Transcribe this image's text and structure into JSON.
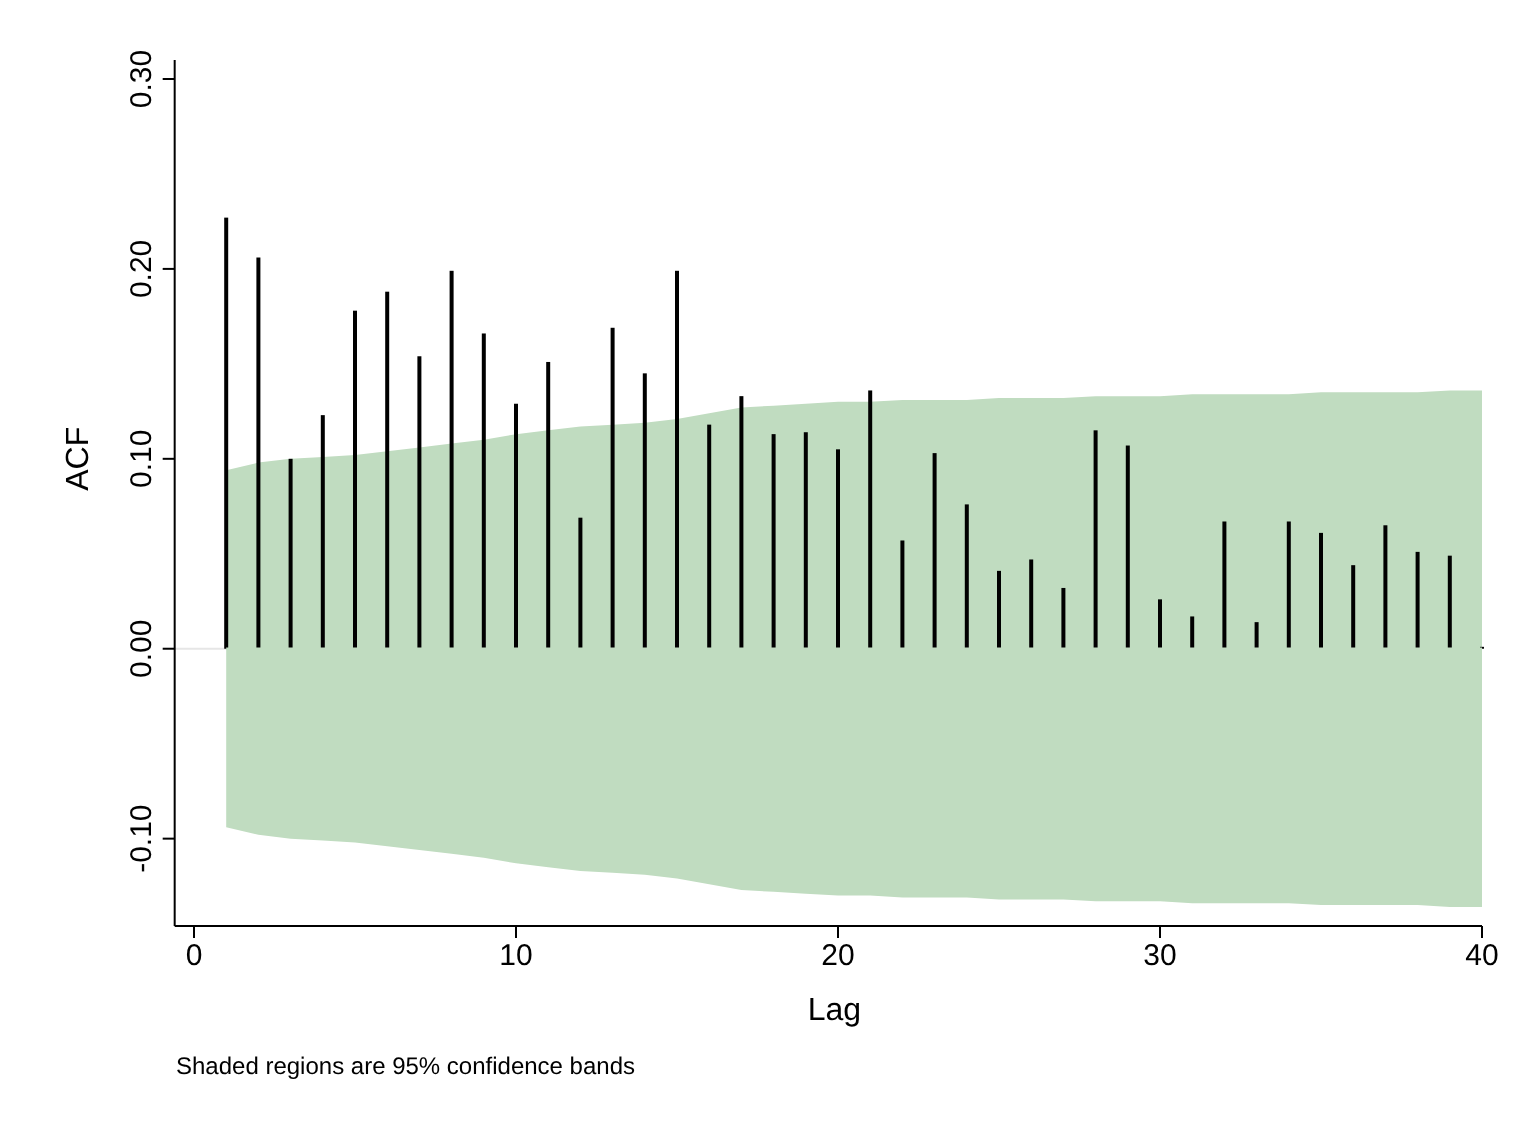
{
  "chart_data": {
    "type": "bar",
    "xlabel": "Lag",
    "ylabel": "ACF",
    "annotations": [
      "Shaded regions are 95% confidence bands"
    ],
    "x": [
      1,
      2,
      3,
      4,
      5,
      6,
      7,
      8,
      9,
      10,
      11,
      12,
      13,
      14,
      15,
      16,
      17,
      18,
      19,
      20,
      21,
      22,
      23,
      24,
      25,
      26,
      27,
      28,
      29,
      30,
      31,
      32,
      33,
      34,
      35,
      36,
      37,
      38,
      39,
      40
    ],
    "series": [
      {
        "type": "line",
        "color": "#c0dcc0",
        "values": [
          0,
          0,
          0,
          0,
          0,
          0,
          0,
          0,
          0,
          0,
          0,
          0,
          0,
          0,
          0,
          0,
          0,
          0,
          0,
          0,
          0,
          0,
          0,
          0,
          0,
          0,
          0,
          0,
          0,
          0,
          0,
          0,
          0,
          0,
          0,
          0,
          0,
          0,
          0,
          0
        ],
        "upper": [
          0.094,
          0.098,
          0.1,
          0.101,
          0.102,
          0.104,
          0.106,
          0.108,
          0.11,
          0.113,
          0.115,
          0.117,
          0.118,
          0.119,
          0.121,
          0.124,
          0.127,
          0.128,
          0.129,
          0.13,
          0.13,
          0.131,
          0.131,
          0.131,
          0.132,
          0.132,
          0.132,
          0.133,
          0.133,
          0.133,
          0.134,
          0.134,
          0.134,
          0.134,
          0.135,
          0.135,
          0.135,
          0.135,
          0.136,
          0.136
        ],
        "lower": [
          -0.094,
          -0.098,
          -0.1,
          -0.101,
          -0.102,
          -0.104,
          -0.106,
          -0.108,
          -0.11,
          -0.113,
          -0.115,
          -0.117,
          -0.118,
          -0.119,
          -0.121,
          -0.124,
          -0.127,
          -0.128,
          -0.129,
          -0.13,
          -0.13,
          -0.131,
          -0.131,
          -0.131,
          -0.132,
          -0.132,
          -0.132,
          -0.133,
          -0.133,
          -0.133,
          -0.134,
          -0.134,
          -0.134,
          -0.134,
          -0.135,
          -0.135,
          -0.135,
          -0.135,
          -0.136,
          -0.136
        ]
      },
      {
        "color": "#000000",
        "values": [
          0.227,
          0.206,
          0.1,
          0.123,
          0.178,
          0.188,
          0.154,
          0.199,
          0.166,
          0.129,
          0.151,
          0.069,
          0.169,
          0.145,
          0.199,
          0.118,
          0.133,
          0.113,
          0.114,
          0.105,
          0.136,
          0.057,
          0.103,
          0.076,
          0.041,
          0.047,
          0.032,
          0.115,
          0.107,
          0.026,
          0.017,
          0.067,
          0.014,
          0.067,
          0.061,
          0.044,
          0.065,
          0.051,
          0.049,
          0.001
        ]
      }
    ],
    "ref_lines": [
      {
        "axis": "y",
        "value": 0,
        "color": "#e6e6e6"
      }
    ],
    "xlim": [
      -0.6,
      40
    ],
    "xticks": [
      0,
      10,
      20,
      30,
      40
    ],
    "ylim": [
      -0.146,
      0.31
    ],
    "yticks": [
      {
        "value": -0.1,
        "label": "-0.10"
      },
      {
        "value": 0,
        "label": "0.00"
      },
      {
        "value": 0.1,
        "label": "0.10"
      },
      {
        "value": 0.2,
        "label": "0.20"
      },
      {
        "value": 0.3,
        "label": "0.30"
      }
    ],
    "grid": false
  }
}
